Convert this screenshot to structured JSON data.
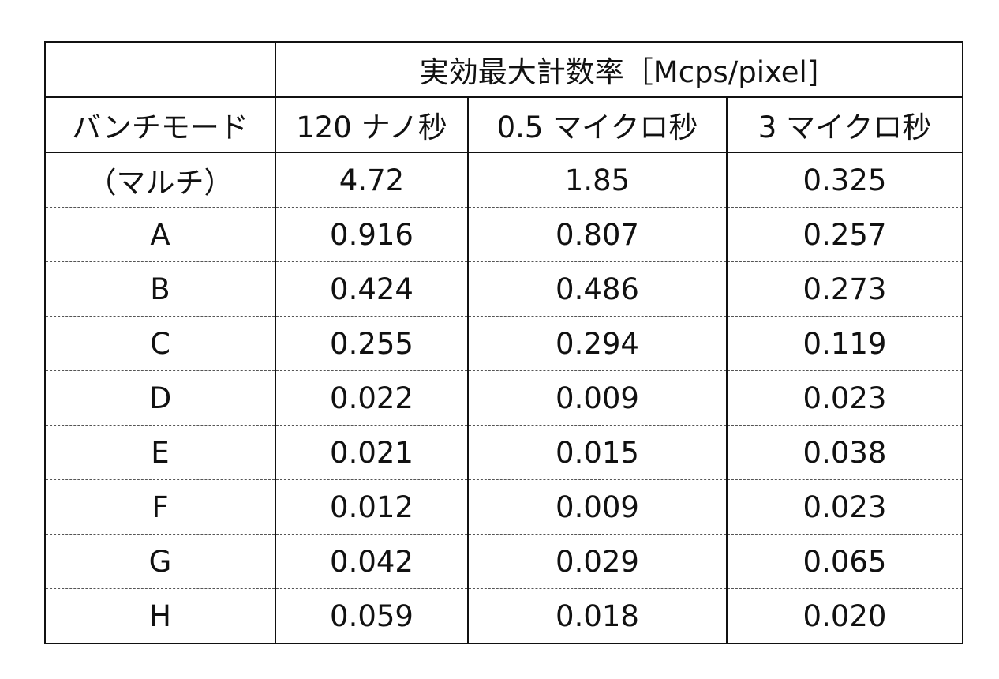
{
  "table": {
    "header_top": {
      "blank": "",
      "title": "実効最大計数率［Mcps/pixel]"
    },
    "header_columns": [
      "バンチモード",
      "120 ナノ秒",
      "0.5 マイクロ秒",
      "3 マイクロ秒"
    ],
    "rows": [
      [
        "（マルチ）",
        "4.72",
        "1.85",
        "0.325"
      ],
      [
        "A",
        "0.916",
        "0.807",
        "0.257"
      ],
      [
        "B",
        "0.424",
        "0.486",
        "0.273"
      ],
      [
        "C",
        "0.255",
        "0.294",
        "0.119"
      ],
      [
        "D",
        "0.022",
        "0.009",
        "0.023"
      ],
      [
        "E",
        "0.021",
        "0.015",
        "0.038"
      ],
      [
        "F",
        "0.012",
        "0.009",
        "0.023"
      ],
      [
        "G",
        "0.042",
        "0.029",
        "0.065"
      ],
      [
        "H",
        "0.059",
        "0.018",
        "0.020"
      ]
    ]
  }
}
